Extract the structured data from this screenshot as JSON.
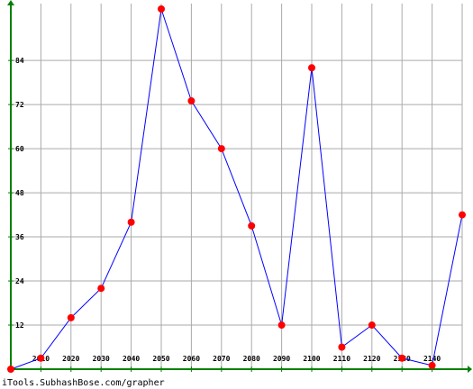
{
  "chart_data": {
    "type": "line",
    "title": "",
    "xlabel": "",
    "ylabel": "",
    "x": [
      2000,
      2010,
      2020,
      2030,
      2040,
      2050,
      2060,
      2070,
      2080,
      2090,
      2100,
      2110,
      2120,
      2130,
      2140,
      2150
    ],
    "series": [
      {
        "values": [
          0,
          3,
          14,
          22,
          40,
          98,
          73,
          60,
          39,
          12,
          82,
          6,
          12,
          3,
          1,
          42
        ]
      }
    ],
    "x_ticks": [
      2010,
      2020,
      2030,
      2040,
      2050,
      2060,
      2070,
      2080,
      2090,
      2100,
      2110,
      2120,
      2130,
      2140
    ],
    "y_ticks": [
      12,
      24,
      36,
      48,
      60,
      72,
      84
    ],
    "xlim": [
      2000,
      2150
    ],
    "ylim": [
      0,
      98
    ],
    "grid": true,
    "colors": {
      "line": "#0000ff",
      "marker": "#ff0000",
      "axis": "#008000",
      "grid": "#aaaaaa"
    }
  },
  "credit": "iTools.SubhashBose.com/grapher"
}
